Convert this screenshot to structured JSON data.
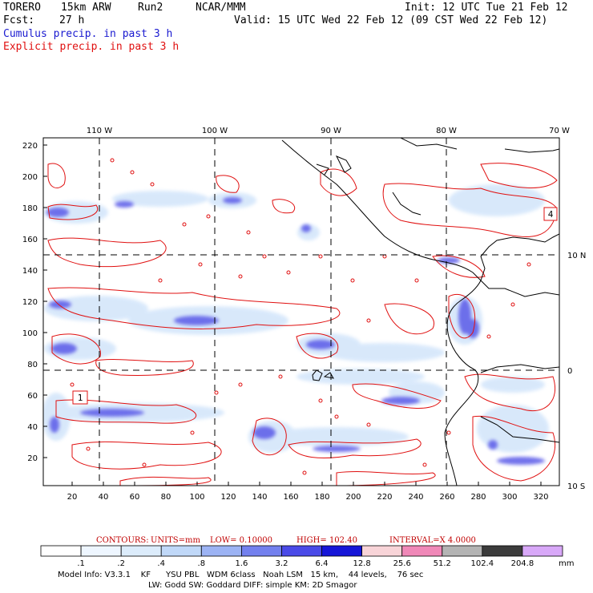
{
  "header": {
    "model": "TORERO",
    "resolution": "15km ARW",
    "run": "Run2",
    "org": "NCAR/MMM",
    "init": "Init: 12 UTC Tue 21 Feb 12",
    "fcst_label": "Fcst:",
    "fcst_value": "27 h",
    "valid": "Valid: 15 UTC Wed 22 Feb 12 (09 CST Wed 22 Feb 12)",
    "field1": "Cumulus precip. in past 3 h",
    "field2": "Explicit precip. in past 3 h"
  },
  "colors": {
    "cumulus": "#1a1ad0",
    "explicit": "#e01010",
    "coast": "#000000"
  },
  "map": {
    "top_lon_labels": [
      "110 W",
      "100 W",
      "90 W",
      "80 W",
      "70 W"
    ],
    "right_lat_labels": [
      "10 N",
      "0",
      "10 S"
    ],
    "left_y_ticks": [
      "220",
      "200",
      "180",
      "160",
      "140",
      "120",
      "100",
      "80",
      "60",
      "40",
      "20"
    ],
    "bottom_x_ticks": [
      "20",
      "40",
      "60",
      "80",
      "100",
      "120",
      "140",
      "160",
      "180",
      "200",
      "220",
      "240",
      "260",
      "280",
      "300",
      "320"
    ],
    "markers": [
      "1",
      "4"
    ]
  },
  "contour_caption": {
    "label": "CONTOURS:",
    "units": "UNITS=mm",
    "low": "LOW= 0.10000",
    "high": "HIGH= 102.40",
    "interval": "INTERVAL=X 4.0000"
  },
  "colorbar": {
    "labels": [
      ".1",
      ".2",
      ".4",
      ".8",
      "1.6",
      "3.2",
      "6.4",
      "12.8",
      "25.6",
      "51.2",
      "102.4",
      "204.8"
    ],
    "colors": [
      "#ffffff",
      "#eef6ff",
      "#dcecfb",
      "#c0d8f8",
      "#9cb3f4",
      "#7380ee",
      "#4a4ae8",
      "#1616d8",
      "#f8d4d8",
      "#f088b8",
      "#b4b4b4",
      "#3c3c3c",
      "#d8a8f8"
    ],
    "unit": "mm"
  },
  "footer": {
    "line1": "Model Info: V3.3.1    KF      YSU PBL   WDM 6class   Noah LSM   15 km,    44 levels,    76 sec",
    "line2": "LW: Godd SW: Goddard DIFF: simple KM: 2D Smagor"
  }
}
